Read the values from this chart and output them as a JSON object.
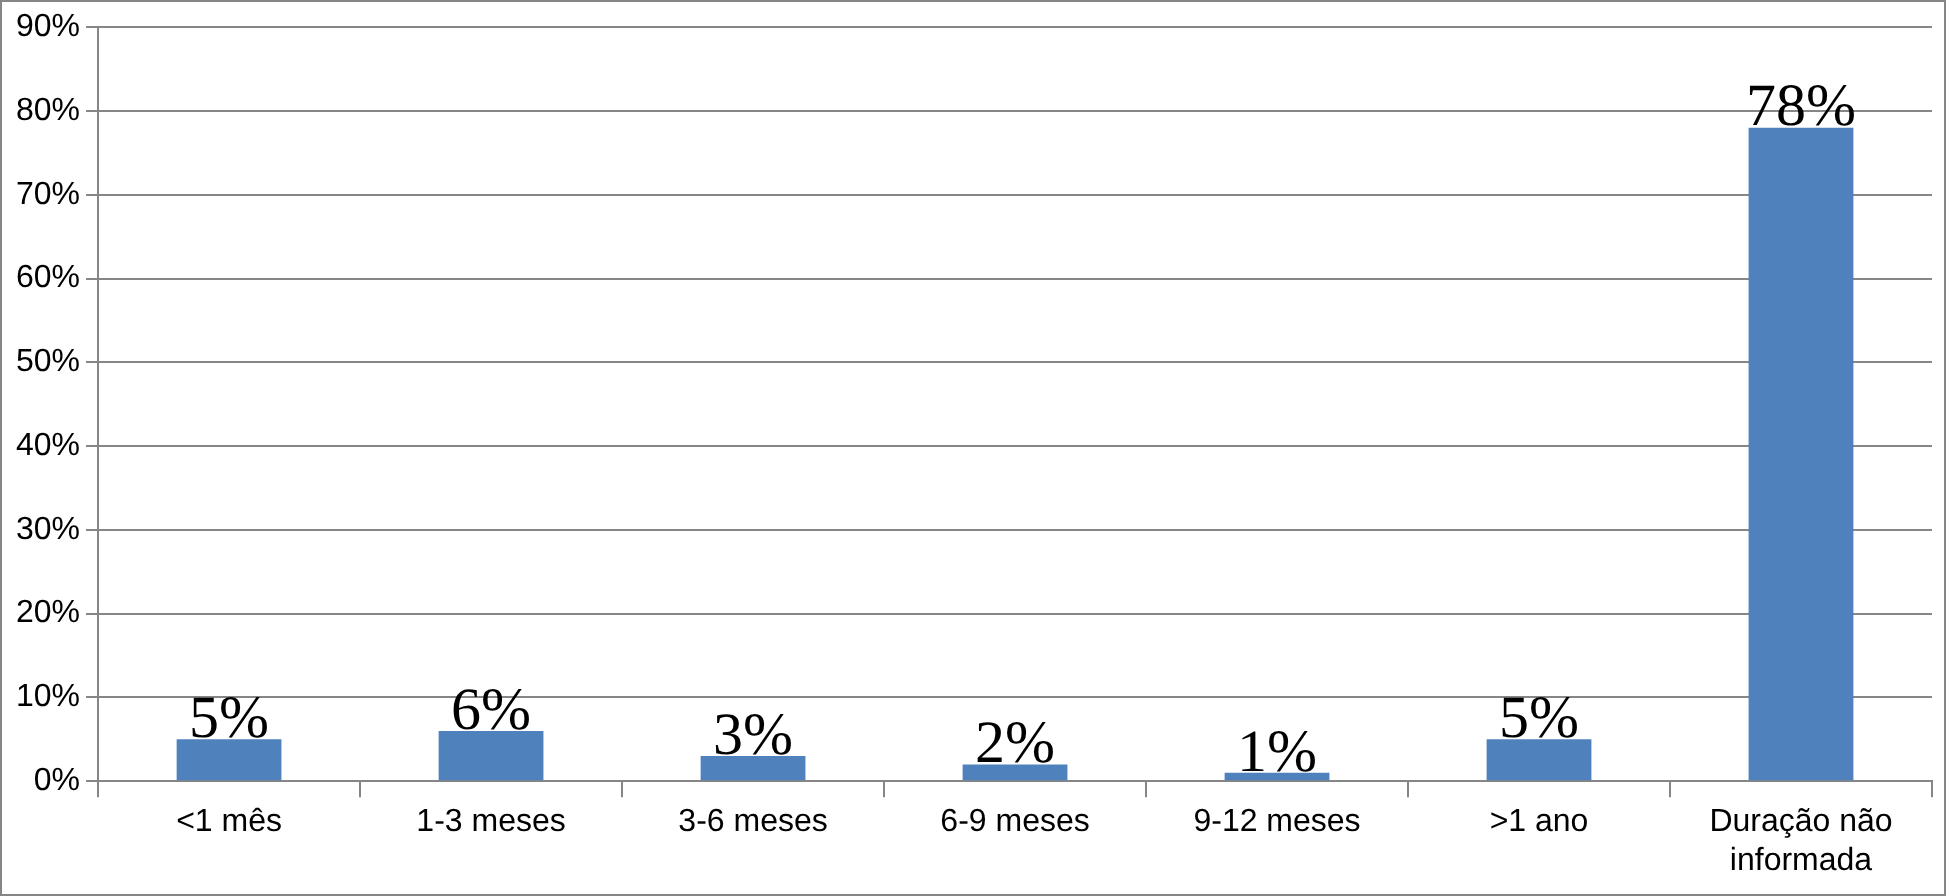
{
  "chart_data": {
    "type": "bar",
    "categories": [
      "<1 mês",
      "1-3 meses",
      "3-6 meses",
      "6-9 meses",
      "9-12 meses",
      ">1 ano",
      "Duração não informada"
    ],
    "values": [
      5,
      6,
      3,
      2,
      1,
      5,
      78
    ],
    "value_labels": [
      "5%",
      "6%",
      "3%",
      "2%",
      "1%",
      "5%",
      "78%"
    ],
    "color": "#4f81bd",
    "ylim": [
      0,
      90
    ],
    "yticks": [
      {
        "value": 0,
        "label": "0%"
      },
      {
        "value": 10,
        "label": "10%"
      },
      {
        "value": 20,
        "label": "20%"
      },
      {
        "value": 30,
        "label": "30%"
      },
      {
        "value": 40,
        "label": "40%"
      },
      {
        "value": 50,
        "label": "50%"
      },
      {
        "value": 60,
        "label": "60%"
      },
      {
        "value": 70,
        "label": "70%"
      },
      {
        "value": 80,
        "label": "80%"
      },
      {
        "value": 90,
        "label": "90%"
      }
    ],
    "grid": "y",
    "legend": false
  }
}
